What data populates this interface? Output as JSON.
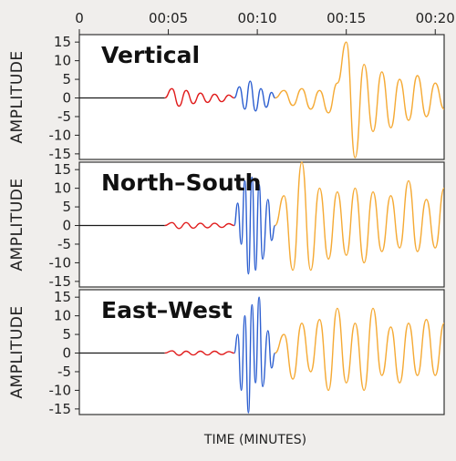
{
  "chart_data": {
    "type": "line",
    "xlabel": "TIME (MINUTES)",
    "x_ticks": [
      "0",
      "00:05",
      "00:10",
      "00:15",
      "00:20"
    ],
    "x_tick_minutes": [
      0,
      5,
      10,
      15,
      20
    ],
    "xlim_minutes": [
      0,
      20.5
    ],
    "ylabel": "AMPLITUDE",
    "y_ticks": [
      "15",
      "10",
      "5",
      "0",
      "-5",
      "-10",
      "-15"
    ],
    "ylim": [
      -16.5,
      17
    ],
    "phase_colors": {
      "pre_event": "#1a1a1a",
      "p_wave": "#e01b1b",
      "s_wave": "#2d5fd0",
      "surface_wave": "#f5aa35"
    },
    "phase_boundaries_minutes": [
      0,
      4.8,
      8.7,
      11.0,
      20.5
    ],
    "panels": [
      {
        "title": "Vertical",
        "series": [
          {
            "x": [
              4.8,
              5.2,
              5.6,
              6.0,
              6.4,
              6.8,
              7.2,
              7.6,
              8.0,
              8.4,
              8.7
            ],
            "y": [
              0,
              2.5,
              -2.2,
              2.0,
              -1.5,
              1.3,
              -1.2,
              1.0,
              -1.0,
              0.8,
              0
            ]
          },
          {
            "x": [
              8.7,
              9.0,
              9.3,
              9.6,
              9.9,
              10.2,
              10.5,
              10.8,
              11.0
            ],
            "y": [
              0,
              3.0,
              -3.0,
              4.5,
              -3.5,
              2.5,
              -2.5,
              1.5,
              0
            ]
          },
          {
            "x": [
              11.0,
              11.5,
              12.0,
              12.5,
              13.0,
              13.5,
              14.0,
              14.5,
              15.0,
              15.5,
              16.0,
              16.5,
              17.0,
              17.5,
              18.0,
              18.5,
              19.0,
              19.5,
              20.0,
              20.5
            ],
            "y": [
              0,
              2.0,
              -2.0,
              2.5,
              -3.0,
              2.0,
              -4.0,
              4.0,
              15.0,
              -16.0,
              9.0,
              -9.0,
              7.0,
              -8.0,
              5.0,
              -6.0,
              6.0,
              -5.0,
              4.0,
              -3.0
            ]
          }
        ]
      },
      {
        "title": "North–South",
        "series": [
          {
            "x": [
              4.8,
              5.2,
              5.6,
              6.0,
              6.4,
              6.8,
              7.2,
              7.6,
              8.0,
              8.4,
              8.7
            ],
            "y": [
              0,
              0.8,
              -0.8,
              0.8,
              -0.7,
              0.6,
              -0.6,
              0.6,
              -0.5,
              0.5,
              0
            ]
          },
          {
            "x": [
              8.7,
              8.9,
              9.1,
              9.3,
              9.5,
              9.7,
              9.9,
              10.1,
              10.3,
              10.6,
              10.8,
              11.0
            ],
            "y": [
              0,
              6.0,
              -5.0,
              12.0,
              -13.0,
              13.0,
              -12.0,
              11.0,
              -9.0,
              7.0,
              -4.0,
              0
            ]
          },
          {
            "x": [
              11.0,
              11.5,
              12.0,
              12.5,
              13.0,
              13.5,
              14.0,
              14.5,
              15.0,
              15.5,
              16.0,
              16.5,
              17.0,
              17.5,
              18.0,
              18.5,
              19.0,
              19.5,
              20.0,
              20.5
            ],
            "y": [
              0,
              8.0,
              -12.0,
              17.0,
              -12.0,
              10.0,
              -9.0,
              9.0,
              -8.0,
              10.0,
              -10.0,
              9.0,
              -7.0,
              8.0,
              -6.0,
              12.0,
              -7.0,
              7.0,
              -6.0,
              10.0
            ]
          }
        ]
      },
      {
        "title": "East–West",
        "series": [
          {
            "x": [
              4.8,
              5.2,
              5.6,
              6.0,
              6.4,
              6.8,
              7.2,
              7.6,
              8.0,
              8.4,
              8.7
            ],
            "y": [
              0,
              0.6,
              -0.6,
              0.5,
              -0.5,
              0.5,
              -0.5,
              0.5,
              -0.4,
              0.4,
              0
            ]
          },
          {
            "x": [
              8.7,
              8.9,
              9.1,
              9.3,
              9.5,
              9.7,
              9.9,
              10.1,
              10.3,
              10.6,
              10.8,
              11.0
            ],
            "y": [
              0,
              5.0,
              -10.0,
              10.0,
              -16.0,
              13.0,
              -8.0,
              15.0,
              -9.0,
              6.0,
              -4.0,
              0
            ]
          },
          {
            "x": [
              11.0,
              11.5,
              12.0,
              12.5,
              13.0,
              13.5,
              14.0,
              14.5,
              15.0,
              15.5,
              16.0,
              16.5,
              17.0,
              17.5,
              18.0,
              18.5,
              19.0,
              19.5,
              20.0,
              20.5
            ],
            "y": [
              0,
              5.0,
              -7.0,
              8.0,
              -5.0,
              9.0,
              -10.0,
              12.0,
              -8.0,
              8.0,
              -10.0,
              12.0,
              -6.0,
              7.0,
              -8.0,
              8.0,
              -6.0,
              9.0,
              -6.0,
              8.0
            ]
          }
        ]
      }
    ]
  }
}
